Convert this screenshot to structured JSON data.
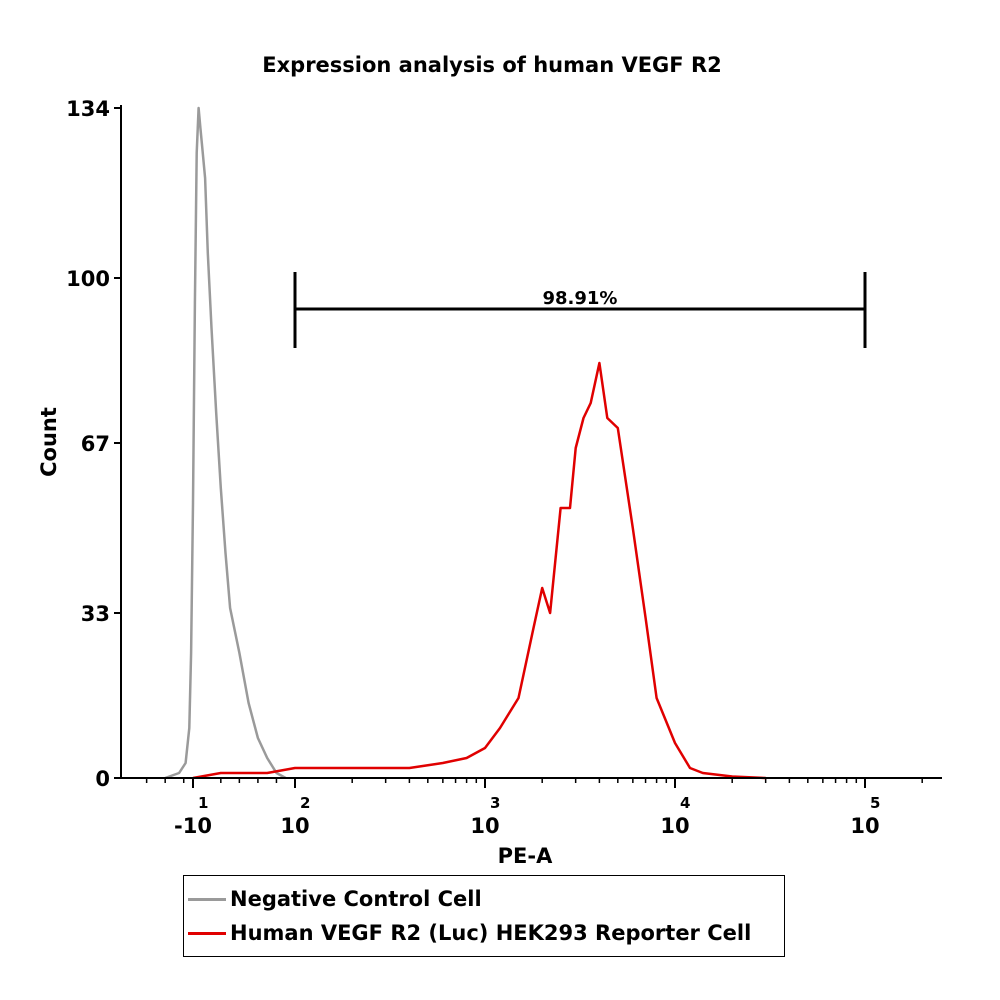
{
  "chart_data": {
    "type": "line",
    "title": "Expression analysis of human VEGF R2",
    "xlabel": "PE-A",
    "ylabel": "Count",
    "xscale": "biexponential",
    "ylim": [
      0,
      134
    ],
    "yticks": [
      {
        "value": 0,
        "label": "0"
      },
      {
        "value": 33,
        "label": "33"
      },
      {
        "value": 67,
        "label": "67"
      },
      {
        "value": 100,
        "label": "100"
      },
      {
        "value": 134,
        "label": "134"
      }
    ],
    "xticks": [
      {
        "value": -10,
        "base": "-10",
        "exp": "1"
      },
      {
        "value": 100,
        "base": "10",
        "exp": "2"
      },
      {
        "value": 1000,
        "base": "10",
        "exp": "3"
      },
      {
        "value": 10000,
        "base": "10",
        "exp": "4"
      },
      {
        "value": 100000,
        "base": "10",
        "exp": "5"
      }
    ],
    "gate": {
      "label": "98.91%",
      "x_start": 100,
      "x_end": 100000
    },
    "series": [
      {
        "name": "Negative Control Cell",
        "color": "#9a9a9a",
        "x": [
          -40,
          -25,
          -18,
          -14,
          -12,
          -10,
          -8,
          -6,
          -4,
          -2,
          0,
          3,
          6,
          10,
          15,
          20,
          25,
          30,
          40,
          50,
          60,
          70,
          80,
          90
        ],
        "y": [
          0,
          1,
          3,
          10,
          25,
          55,
          95,
          125,
          134,
          130,
          126,
          120,
          105,
          90,
          73,
          58,
          45,
          34,
          25,
          15,
          8,
          4,
          1,
          0
        ]
      },
      {
        "name": "Human VEGF R2 (Luc) HEK293 Reporter Cell",
        "color": "#e00000",
        "x": [
          -10,
          20,
          70,
          100,
          200,
          400,
          600,
          800,
          1000,
          1200,
          1500,
          1800,
          2000,
          2200,
          2500,
          2800,
          3000,
          3300,
          3600,
          4000,
          4400,
          5000,
          6000,
          7000,
          8000,
          10000,
          12000,
          14000,
          20000,
          30000
        ],
        "y": [
          0,
          1,
          1,
          2,
          2,
          2,
          3,
          4,
          6,
          10,
          16,
          30,
          38,
          33,
          54,
          54,
          66,
          72,
          75,
          83,
          72,
          70,
          50,
          32,
          16,
          7,
          2,
          1,
          0.3,
          0
        ]
      }
    ]
  }
}
